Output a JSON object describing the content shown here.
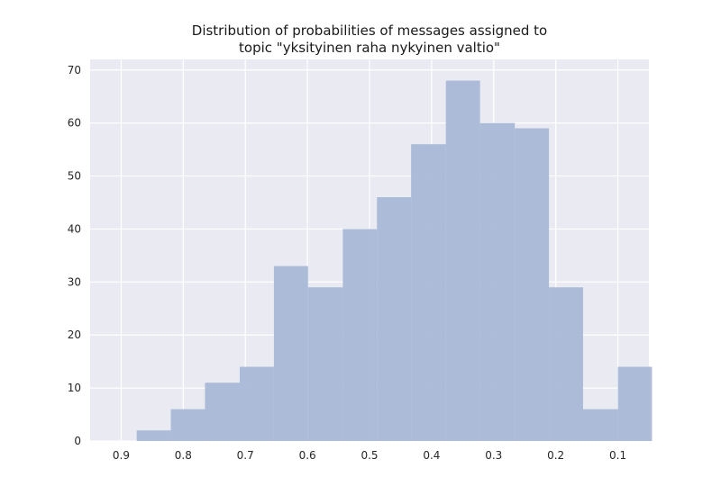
{
  "chart_data": {
    "type": "bar",
    "title": [
      "Distribution of probabilities of messages assigned to",
      "topic \"yksityinen raha nykyinen valtio\""
    ],
    "xlabel": "",
    "ylabel": "",
    "x_axis_reversed": true,
    "xlim": [
      0.95,
      0.05
    ],
    "ylim": [
      0,
      72
    ],
    "xticks": [
      "0.9",
      "0.8",
      "0.7",
      "0.6",
      "0.5",
      "0.4",
      "0.3",
      "0.2",
      "0.1"
    ],
    "yticks": [
      "0",
      "10",
      "20",
      "30",
      "40",
      "50",
      "60",
      "70"
    ],
    "grid": true,
    "bin_edges": [
      0.875,
      0.82,
      0.765,
      0.709,
      0.654,
      0.599,
      0.543,
      0.488,
      0.433,
      0.377,
      0.322,
      0.266,
      0.211,
      0.156,
      0.1,
      0.045
    ],
    "values": [
      2,
      6,
      11,
      14,
      33,
      29,
      40,
      46,
      56,
      68,
      60,
      59,
      29,
      6,
      14
    ],
    "bar_color": "#a9b8d6",
    "background": "#eaeaf2",
    "grid_color": "#ffffff"
  }
}
